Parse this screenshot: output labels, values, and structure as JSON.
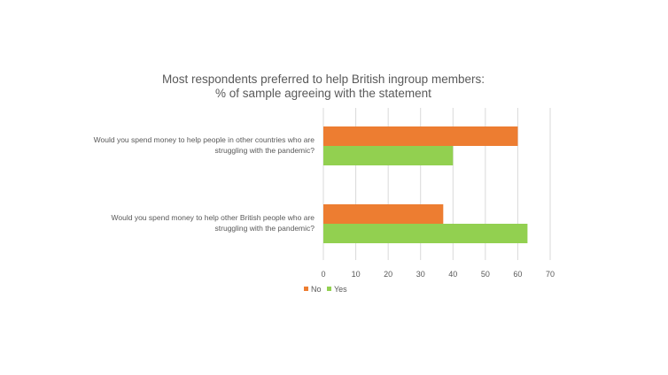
{
  "chart_data": {
    "type": "bar",
    "orientation": "horizontal",
    "title": [
      "Most respondents preferred  to help British ingroup members:",
      "% of sample agreeing with the statement"
    ],
    "categories": [
      [
        "Would you spend money to help people in other countries who are",
        "struggling with the pandemic?"
      ],
      [
        "Would you spend money to help other British people who are",
        "struggling with the pandemic?"
      ]
    ],
    "series": [
      {
        "name": "No",
        "color": "#ed7d31",
        "values": [
          60,
          37
        ]
      },
      {
        "name": "Yes",
        "color": "#92d050",
        "values": [
          40,
          63
        ]
      }
    ],
    "xlim": [
      0,
      70
    ],
    "xticks": [
      0,
      10,
      20,
      30,
      40,
      50,
      60,
      70
    ],
    "grid": true,
    "legend": "bottom-left",
    "gridColor": "#d9d9d9"
  }
}
